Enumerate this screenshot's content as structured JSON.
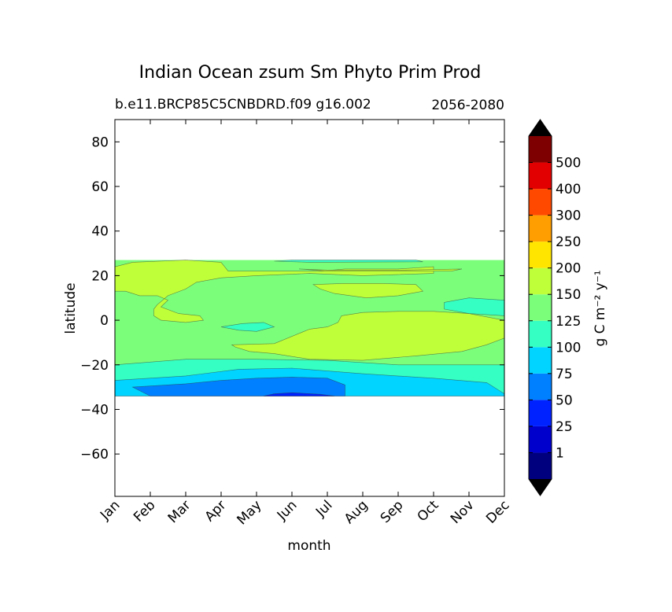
{
  "chart_data": {
    "type": "contour",
    "title": "Indian Ocean zsum Sm Phyto Prim Prod",
    "subtitle_left": "b.e11.BRCP85C5CNBDRD.f09 g16.002",
    "subtitle_right": "2056-2080",
    "xlabel": "month",
    "ylabel": "latitude",
    "months": [
      "Jan",
      "Feb",
      "Mar",
      "Apr",
      "May",
      "Jun",
      "Jul",
      "Aug",
      "Sep",
      "Oct",
      "Nov",
      "Dec"
    ],
    "ylim": [
      -79,
      90
    ],
    "yticks": [
      80,
      60,
      40,
      20,
      0,
      -20,
      -40,
      -60
    ],
    "ytick_labels": [
      "80",
      "60",
      "40",
      "20",
      "0",
      "−20",
      "−40",
      "−60"
    ],
    "data_lat_range": [
      -34,
      27
    ],
    "colorbar": {
      "label": "g C m⁻² y⁻¹",
      "levels": [
        1,
        25,
        50,
        75,
        100,
        125,
        150,
        200,
        250,
        300,
        400,
        500
      ],
      "labels": [
        "1",
        "25",
        "50",
        "75",
        "100",
        "125",
        "150",
        "200",
        "250",
        "300",
        "400",
        "500"
      ],
      "colors": [
        "#00007f",
        "#0000cd",
        "#0022ff",
        "#0080ff",
        "#00d4ff",
        "#35ffc2",
        "#7bff7b",
        "#beff39",
        "#ffe500",
        "#ff9e00",
        "#ff4800",
        "#e30000",
        "#7f0000"
      ],
      "under_color": "#000000",
      "over_color": "#000000"
    },
    "regions": [
      {
        "name": "background-150-200",
        "level_range": [
          150,
          200
        ],
        "months": "Jan-Dec",
        "lat_range": [
          -34,
          27
        ]
      },
      {
        "name": "band-125-150",
        "level_range": [
          125,
          150
        ],
        "months": "Jan-Dec",
        "lat_range": [
          -34,
          -20
        ]
      },
      {
        "name": "band-100-125",
        "level_range": [
          100,
          125
        ],
        "months": "Jan-Nov",
        "lat_range": [
          -34,
          -29
        ]
      },
      {
        "name": "band-75-100",
        "level_range": [
          75,
          100
        ],
        "months": "Feb-Jul",
        "lat_range": [
          -34,
          -31
        ]
      },
      {
        "name": "patch-north-jan-apr",
        "level_range": [
          200,
          250
        ],
        "months": "Jan-Apr",
        "lat_range": [
          0,
          27
        ]
      },
      {
        "name": "patch-equator-jun-dec",
        "level_range": [
          200,
          250
        ],
        "months": "May-Dec",
        "lat_range": [
          -18,
          4
        ]
      },
      {
        "name": "patch-north-jul-aug",
        "level_range": [
          200,
          250
        ],
        "months": "Jul-Aug",
        "lat_range": [
          9,
          17
        ]
      },
      {
        "name": "patch-east-nov-dec",
        "level_range": [
          125,
          150
        ],
        "months": "Nov-Dec",
        "lat_range": [
          1,
          10
        ]
      },
      {
        "name": "patch-may-equator",
        "level_range": [
          125,
          150
        ],
        "months": "Apr-May",
        "lat_range": [
          -5,
          -1
        ]
      }
    ]
  }
}
